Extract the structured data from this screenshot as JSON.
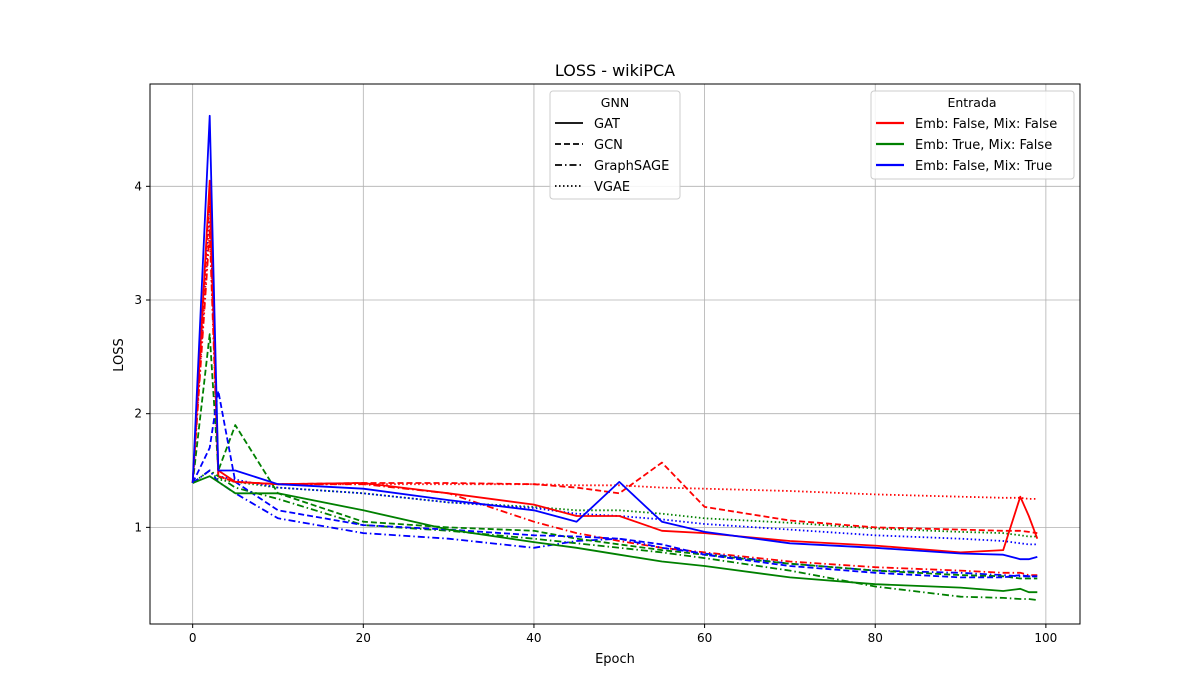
{
  "chart_data": {
    "type": "line",
    "title": "LOSS - wikiPCA",
    "xlabel": "Epoch",
    "ylabel": "LOSS",
    "xlim": [
      -5,
      104
    ],
    "ylim": [
      0.15,
      4.9
    ],
    "xticks": [
      0,
      20,
      40,
      60,
      80,
      100
    ],
    "yticks": [
      1,
      2,
      3,
      4
    ],
    "grid": true,
    "legends": [
      {
        "title": "GNN",
        "placement": "upper-center",
        "entries": [
          {
            "label": "GAT",
            "style": "solid"
          },
          {
            "label": "GCN",
            "style": "dashed"
          },
          {
            "label": "GraphSAGE",
            "style": "dashdot"
          },
          {
            "label": "VGAE",
            "style": "dotted"
          }
        ]
      },
      {
        "title": "Entrada",
        "placement": "upper-right",
        "entries": [
          {
            "label": "Emb: False, Mix: False",
            "color": "#ff0000"
          },
          {
            "label": "Emb: True, Mix: False",
            "color": "#008000"
          },
          {
            "label": "Emb: False, Mix: True",
            "color": "#0000ff"
          }
        ]
      }
    ],
    "x": [
      0,
      2,
      3,
      5,
      10,
      20,
      30,
      40,
      45,
      50,
      55,
      60,
      70,
      80,
      90,
      95,
      97,
      98,
      99
    ],
    "series": [
      {
        "model": "GAT",
        "input": "Emb: False, Mix: False",
        "color": "#ff0000",
        "style": "solid",
        "values": [
          1.39,
          4.05,
          1.5,
          1.4,
          1.38,
          1.39,
          1.3,
          1.2,
          1.1,
          1.1,
          0.97,
          0.95,
          0.88,
          0.84,
          0.78,
          0.8,
          1.27,
          1.1,
          0.9
        ]
      },
      {
        "model": "GAT",
        "input": "Emb: True, Mix: False",
        "color": "#008000",
        "style": "solid",
        "values": [
          1.39,
          1.45,
          1.4,
          1.3,
          1.3,
          1.15,
          0.98,
          0.87,
          0.82,
          0.76,
          0.7,
          0.66,
          0.56,
          0.5,
          0.47,
          0.44,
          0.46,
          0.43,
          0.43
        ]
      },
      {
        "model": "GAT",
        "input": "Emb: False, Mix: True",
        "color": "#0000ff",
        "style": "solid",
        "values": [
          1.39,
          4.62,
          1.5,
          1.5,
          1.38,
          1.34,
          1.24,
          1.15,
          1.05,
          1.4,
          1.05,
          0.96,
          0.86,
          0.82,
          0.77,
          0.76,
          0.72,
          0.72,
          0.74
        ]
      },
      {
        "model": "GCN",
        "input": "Emb: False, Mix: False",
        "color": "#ff0000",
        "style": "dashed",
        "values": [
          1.39,
          3.95,
          1.45,
          1.4,
          1.38,
          1.39,
          1.39,
          1.38,
          1.35,
          1.3,
          1.57,
          1.18,
          1.06,
          1.0,
          0.98,
          0.97,
          0.97,
          0.96,
          0.95
        ]
      },
      {
        "model": "GCN",
        "input": "Emb: True, Mix: False",
        "color": "#008000",
        "style": "dashed",
        "values": [
          1.39,
          2.7,
          1.5,
          1.9,
          1.3,
          1.05,
          1.0,
          0.97,
          0.9,
          0.85,
          0.8,
          0.76,
          0.68,
          0.62,
          0.58,
          0.57,
          0.55,
          0.55,
          0.55
        ]
      },
      {
        "model": "GCN",
        "input": "Emb: False, Mix: True",
        "color": "#0000ff",
        "style": "dashed",
        "values": [
          1.39,
          1.7,
          2.2,
          1.4,
          1.15,
          1.02,
          0.98,
          0.93,
          0.92,
          0.9,
          0.85,
          0.76,
          0.66,
          0.6,
          0.56,
          0.56,
          0.58,
          0.57,
          0.57
        ]
      },
      {
        "model": "GraphSAGE",
        "input": "Emb: False, Mix: False",
        "color": "#ff0000",
        "style": "dashdot",
        "values": [
          1.39,
          3.6,
          1.45,
          1.4,
          1.38,
          1.38,
          1.3,
          1.05,
          0.95,
          0.88,
          0.82,
          0.78,
          0.7,
          0.65,
          0.62,
          0.6,
          0.6,
          0.58,
          0.58
        ]
      },
      {
        "model": "GraphSAGE",
        "input": "Emb: True, Mix: False",
        "color": "#008000",
        "style": "dashdot",
        "values": [
          1.39,
          1.5,
          1.45,
          1.35,
          1.25,
          1.02,
          0.97,
          0.9,
          0.86,
          0.82,
          0.78,
          0.73,
          0.62,
          0.48,
          0.39,
          0.38,
          0.37,
          0.37,
          0.36
        ]
      },
      {
        "model": "GraphSAGE",
        "input": "Emb: False, Mix: True",
        "color": "#0000ff",
        "style": "dashdot",
        "values": [
          1.39,
          1.5,
          1.4,
          1.3,
          1.08,
          0.95,
          0.9,
          0.82,
          0.88,
          0.9,
          0.82,
          0.77,
          0.68,
          0.62,
          0.6,
          0.58,
          0.57,
          0.57,
          0.57
        ]
      },
      {
        "model": "VGAE",
        "input": "Emb: False, Mix: False",
        "color": "#ff0000",
        "style": "dotted",
        "values": [
          1.39,
          3.7,
          1.45,
          1.4,
          1.38,
          1.38,
          1.38,
          1.38,
          1.37,
          1.37,
          1.35,
          1.34,
          1.32,
          1.29,
          1.27,
          1.26,
          1.26,
          1.25,
          1.25
        ]
      },
      {
        "model": "VGAE",
        "input": "Emb: True, Mix: False",
        "color": "#008000",
        "style": "dotted",
        "values": [
          1.39,
          1.5,
          1.42,
          1.4,
          1.35,
          1.3,
          1.22,
          1.18,
          1.15,
          1.15,
          1.12,
          1.08,
          1.04,
          0.99,
          0.96,
          0.95,
          0.93,
          0.92,
          0.92
        ]
      },
      {
        "model": "VGAE",
        "input": "Emb: False, Mix: True",
        "color": "#0000ff",
        "style": "dotted",
        "values": [
          1.39,
          3.9,
          1.45,
          1.42,
          1.35,
          1.3,
          1.22,
          1.17,
          1.12,
          1.1,
          1.07,
          1.03,
          0.98,
          0.93,
          0.9,
          0.88,
          0.86,
          0.85,
          0.85
        ]
      }
    ]
  }
}
